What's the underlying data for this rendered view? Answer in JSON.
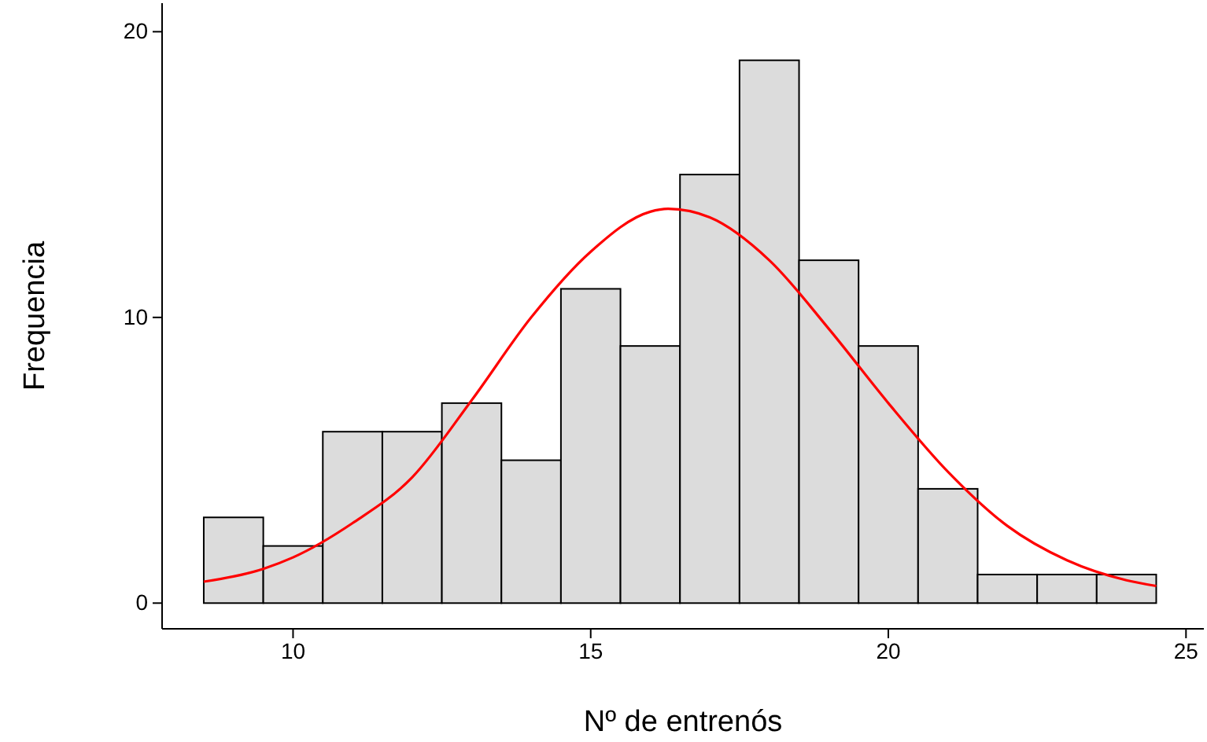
{
  "chart_data": {
    "type": "histogram",
    "xlabel": "Nº de entrenós",
    "ylabel": "Frequencia",
    "bins": [
      8.5,
      9.5,
      10.5,
      11.5,
      12.5,
      13.5,
      14.5,
      15.5,
      16.5,
      17.5,
      18.5,
      19.5,
      20.5,
      21.5,
      22.5,
      23.5,
      24.5
    ],
    "values": [
      3,
      2,
      6,
      6,
      7,
      5,
      11,
      9,
      15,
      19,
      12,
      9,
      4,
      1,
      1,
      1
    ],
    "color": "#dcdcdc",
    "series": [
      {
        "type": "line",
        "color": "#ff0000",
        "x": [
          8.5,
          9.5,
          10,
          11,
          12,
          13,
          14,
          15,
          16,
          16.3,
          17,
          18,
          19,
          20,
          21,
          22,
          23,
          24,
          24.5
        ],
        "values": [
          0.75,
          1.2,
          1.6,
          2.8,
          4.4,
          7.1,
          10,
          12.3,
          13.7,
          13.8,
          13.5,
          12,
          9.6,
          7,
          4.6,
          2.7,
          1.5,
          0.8,
          0.6
        ]
      }
    ],
    "xlim": [
      7.8,
      25.3
    ],
    "ylim": [
      -0.9,
      21
    ],
    "xticks": [
      10,
      15,
      20,
      25
    ],
    "yticks": [
      0,
      10,
      20
    ],
    "grid": false
  }
}
